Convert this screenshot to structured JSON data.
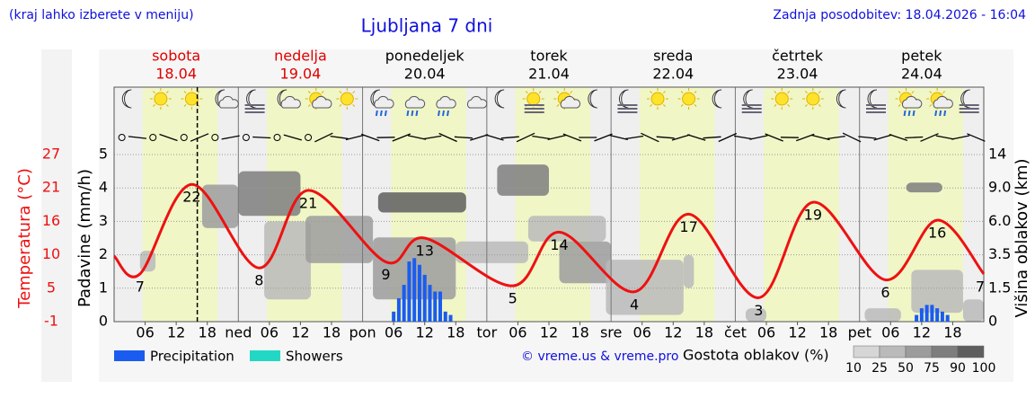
{
  "chart_data": {
    "type": "meteogram",
    "title": "Ljubljana 7 dni",
    "note": "(kraj lahko izberete v meniju)",
    "updated": "Zadnja posodobitev: 18.04.2026 - 16:04",
    "credit": "© vreme.us & vreme.pro",
    "days": [
      {
        "name": "sobota",
        "date": "18.04",
        "color": "#e00000"
      },
      {
        "name": "nedelja",
        "date": "19.04",
        "color": "#e00000"
      },
      {
        "name": "ponedeljek",
        "date": "20.04",
        "color": "#000000"
      },
      {
        "name": "torek",
        "date": "21.04",
        "color": "#000000"
      },
      {
        "name": "sreda",
        "date": "22.04",
        "color": "#000000"
      },
      {
        "name": "četrtek",
        "date": "23.04",
        "color": "#000000"
      },
      {
        "name": "petek",
        "date": "24.04",
        "color": "#000000"
      }
    ],
    "xlim": [
      0,
      168
    ],
    "xticks": [
      {
        "value": 6,
        "label": "06"
      },
      {
        "value": 12,
        "label": "12"
      },
      {
        "value": 18,
        "label": "18"
      },
      {
        "value": 24,
        "label": "ned"
      },
      {
        "value": 30,
        "label": "06"
      },
      {
        "value": 36,
        "label": "12"
      },
      {
        "value": 42,
        "label": "18"
      },
      {
        "value": 48,
        "label": "pon"
      },
      {
        "value": 54,
        "label": "06"
      },
      {
        "value": 60,
        "label": "12"
      },
      {
        "value": 66,
        "label": "18"
      },
      {
        "value": 72,
        "label": "tor"
      },
      {
        "value": 78,
        "label": "06"
      },
      {
        "value": 84,
        "label": "12"
      },
      {
        "value": 90,
        "label": "18"
      },
      {
        "value": 96,
        "label": "sre"
      },
      {
        "value": 102,
        "label": "06"
      },
      {
        "value": 108,
        "label": "12"
      },
      {
        "value": 114,
        "label": "18"
      },
      {
        "value": 120,
        "label": "čet"
      },
      {
        "value": 126,
        "label": "06"
      },
      {
        "value": 132,
        "label": "12"
      },
      {
        "value": 138,
        "label": "18"
      },
      {
        "value": 144,
        "label": "pet"
      },
      {
        "value": 150,
        "label": "06"
      },
      {
        "value": 156,
        "label": "12"
      },
      {
        "value": 162,
        "label": "18"
      }
    ],
    "now": 16.07,
    "ylabel": "Padavine (mm/h)",
    "ylim": [
      0,
      5
    ],
    "yticks": [
      0,
      1,
      2,
      3,
      4,
      5
    ],
    "temp_label": "Temperatura (°C)",
    "temp_lim": [
      -1,
      27
    ],
    "temp_ticks": [
      -1,
      {
        "value": 4.6,
        "label": "5"
      },
      {
        "value": 10.2,
        "label": "10"
      },
      {
        "value": 15.8,
        "label": "16"
      },
      {
        "value": 21.4,
        "label": "21"
      },
      27
    ],
    "y2label": "Višina oblakov (km)",
    "y2ticks": [
      0,
      1.5,
      3.5,
      {
        "value": 6,
        "label": "6.0"
      },
      {
        "value": 9,
        "label": "9.0"
      },
      14
    ],
    "grid": true,
    "temperature": {
      "color": "#ee1111",
      "x": [
        0,
        5,
        15,
        28,
        37.5,
        52.5,
        60,
        77,
        86,
        100.5,
        111,
        124.5,
        135,
        149,
        159,
        168
      ],
      "values": [
        10,
        7,
        22,
        8,
        21,
        9,
        13,
        5,
        14,
        4,
        17,
        3,
        19,
        6,
        16,
        7
      ],
      "value_labels": [
        null,
        "7",
        "22",
        "8",
        "21",
        "9",
        "13",
        "5",
        "14",
        "4",
        "17",
        "3",
        "19",
        "6",
        "16",
        "7"
      ]
    },
    "series": [
      {
        "name": "Precipitation",
        "color": "#1a5cf0",
        "x": [
          54,
          55,
          56,
          57,
          58,
          59,
          60,
          61,
          62,
          63,
          64,
          65,
          155,
          156,
          157,
          158,
          159,
          160,
          161
        ],
        "values": [
          0.3,
          0.7,
          1.1,
          1.8,
          1.9,
          1.7,
          1.4,
          1.1,
          0.9,
          0.9,
          0.3,
          0.2,
          0.2,
          0.4,
          0.5,
          0.5,
          0.4,
          0.3,
          0.2
        ]
      },
      {
        "name": "Showers",
        "color": "#22d8c4",
        "x": [],
        "values": []
      }
    ],
    "cloud_legend": "Gostota oblakov (%)",
    "cloud_ticks": [
      10,
      25,
      50,
      75,
      90,
      100
    ],
    "cloud_colors": [
      "#d6d6d6",
      "#bababa",
      "#9c9c9c",
      "#7e7e7e",
      "#5e5e5e",
      "#444444"
    ],
    "clouds": [
      {
        "x": [
          5,
          8
        ],
        "km": [
          2.5,
          3.8
        ],
        "density": 25
      },
      {
        "x": [
          17,
          24
        ],
        "km": [
          5.5,
          9.5
        ],
        "density": 50
      },
      {
        "x": [
          24,
          36
        ],
        "km": [
          6.5,
          11.5
        ],
        "density": 75
      },
      {
        "x": [
          29,
          38
        ],
        "km": [
          1.0,
          6.0
        ],
        "density": 25
      },
      {
        "x": [
          37,
          50
        ],
        "km": [
          3.0,
          6.5
        ],
        "density": 50
      },
      {
        "x": [
          51,
          68
        ],
        "km": [
          6.8,
          8.6
        ],
        "density": 90
      },
      {
        "x": [
          50,
          66
        ],
        "km": [
          1.0,
          4.8
        ],
        "density": 50
      },
      {
        "x": [
          66,
          80
        ],
        "km": [
          3.0,
          4.5
        ],
        "density": 25
      },
      {
        "x": [
          74,
          84
        ],
        "km": [
          8.3,
          12.5
        ],
        "density": 75
      },
      {
        "x": [
          80,
          95
        ],
        "km": [
          4.5,
          6.5
        ],
        "density": 25
      },
      {
        "x": [
          86,
          96
        ],
        "km": [
          1.8,
          4.5
        ],
        "density": 50
      },
      {
        "x": [
          95,
          110
        ],
        "km": [
          0.3,
          3.2
        ],
        "density": 25
      },
      {
        "x": [
          110,
          112
        ],
        "km": [
          1.5,
          3.5
        ],
        "density": 25
      },
      {
        "x": [
          122,
          126
        ],
        "km": [
          0,
          0.6
        ],
        "density": 25
      },
      {
        "x": [
          145,
          152
        ],
        "km": [
          0,
          0.6
        ],
        "density": 25
      },
      {
        "x": [
          153,
          160
        ],
        "km": [
          8.6,
          9.8
        ],
        "density": 75
      },
      {
        "x": [
          154,
          164
        ],
        "km": [
          0.4,
          2.6
        ],
        "density": 25
      },
      {
        "x": [
          164,
          168
        ],
        "km": [
          0,
          1.0
        ],
        "density": 25
      }
    ]
  }
}
